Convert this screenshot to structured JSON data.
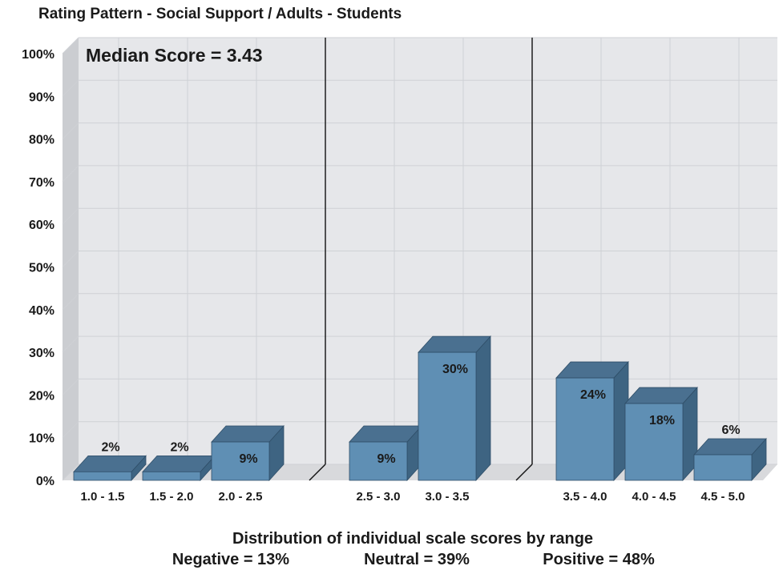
{
  "chart_data": {
    "type": "bar",
    "title": "Rating Pattern - Social Support / Adults - Students",
    "annotation": "Median Score = 3.43",
    "xlabel": "Distribution of individual scale scores by range",
    "ylabel": "",
    "ylim": [
      0,
      100
    ],
    "y_ticks": [
      "0%",
      "10%",
      "20%",
      "30%",
      "40%",
      "50%",
      "60%",
      "70%",
      "80%",
      "90%",
      "100%"
    ],
    "grid": true,
    "groups": [
      {
        "name": "Negative",
        "summary": "Negative = 13%",
        "bars": [
          {
            "category": "1.0 - 1.5",
            "value": 2,
            "label": "2%"
          },
          {
            "category": "1.5 - 2.0",
            "value": 2,
            "label": "2%"
          },
          {
            "category": "2.0 - 2.5",
            "value": 9,
            "label": "9%"
          }
        ]
      },
      {
        "name": "Neutral",
        "summary": "Neutral = 39%",
        "bars": [
          {
            "category": "2.5 - 3.0",
            "value": 9,
            "label": "9%"
          },
          {
            "category": "3.0 - 3.5",
            "value": 30,
            "label": "30%"
          }
        ]
      },
      {
        "name": "Positive",
        "summary": "Positive = 48%",
        "bars": [
          {
            "category": "3.5 - 4.0",
            "value": 24,
            "label": "24%"
          },
          {
            "category": "4.0 - 4.5",
            "value": 18,
            "label": "18%"
          },
          {
            "category": "4.5 - 5.0",
            "value": 6,
            "label": "6%"
          }
        ]
      }
    ],
    "colors": {
      "bar_front": "#5f8fb4",
      "bar_top": "#4a7090",
      "bar_side": "#3e6482",
      "plot_back": "#e6e7ea",
      "plot_floor": "#d8d9dc",
      "plot_wall": "#cbcdd1",
      "grid": "#cfd1d5",
      "divider": "#111111"
    }
  }
}
